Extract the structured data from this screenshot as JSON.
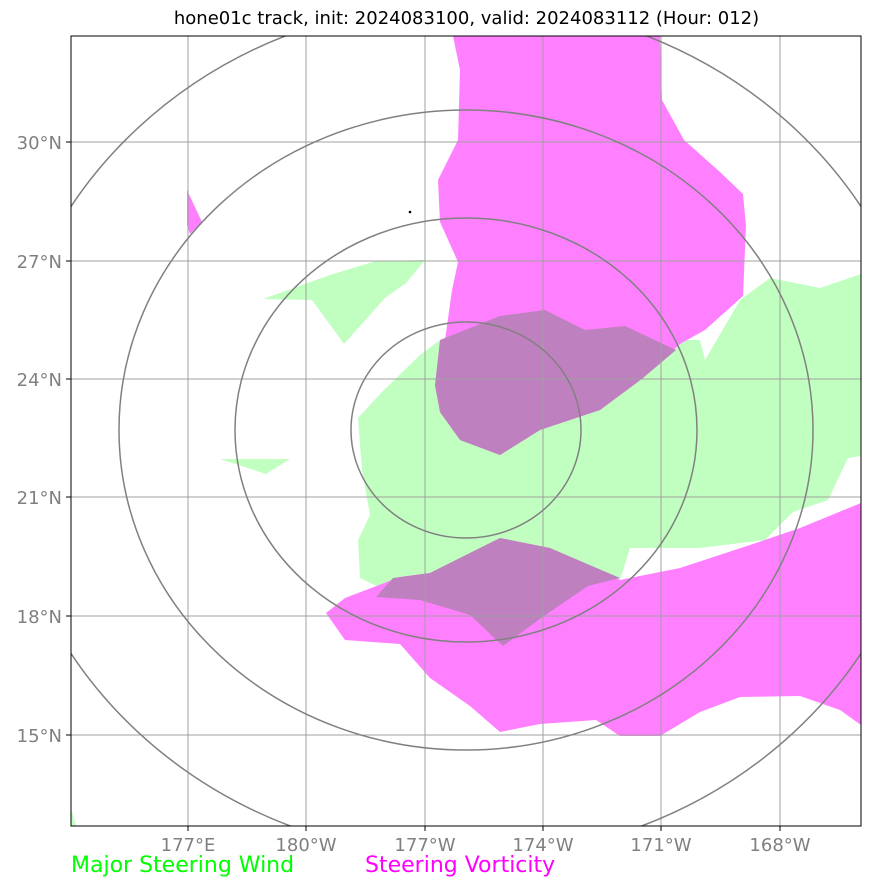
{
  "title": "hone01c track, init: 2024083100, valid: 2024083112 (Hour: 012)",
  "lat_labels": [
    "30°N",
    "27°N",
    "24°N",
    "21°N",
    "18°N",
    "15°N"
  ],
  "lon_labels": [
    "177°E",
    "180°W",
    "177°W",
    "174°W",
    "171°W",
    "168°W"
  ],
  "legend": {
    "wind": {
      "label": "Major Steering Wind",
      "color": "#00ff00"
    },
    "vorticity": {
      "label": "Steering Vorticity",
      "color": "#ff00ff"
    }
  },
  "colors": {
    "wind_fill": "#c0ffc0",
    "vorticity_fill": "#ff80ff",
    "overlap_fill": "#bf80bf",
    "gridline": "#a0a0a0",
    "range_ring": "#808080"
  }
}
